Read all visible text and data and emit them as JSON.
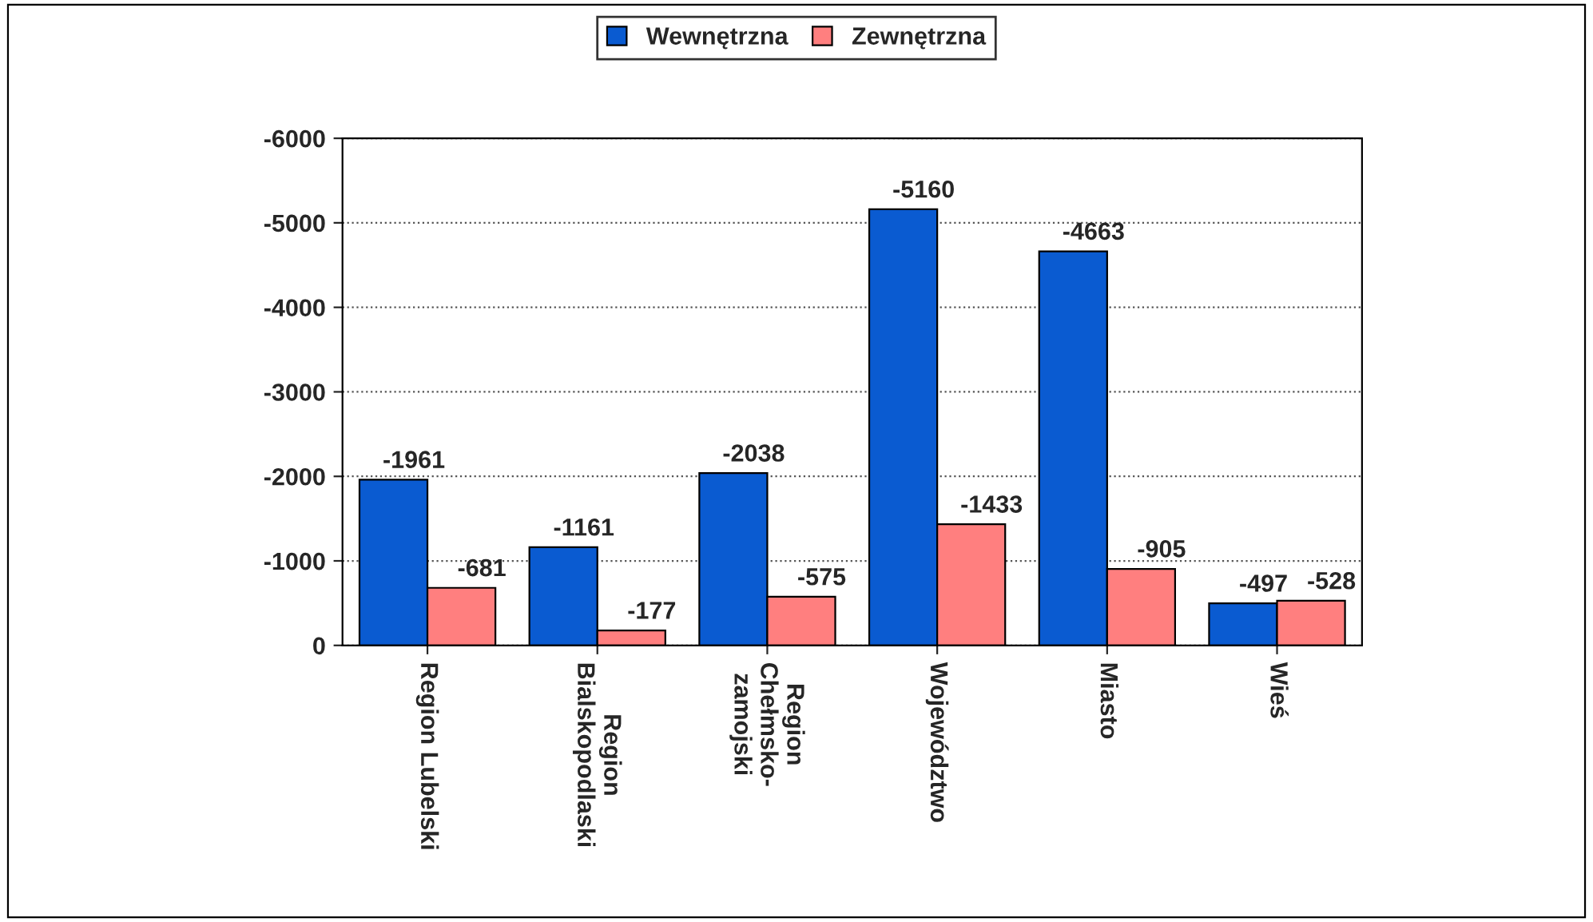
{
  "chart_data": {
    "type": "bar",
    "categories": [
      "Region Lubelski",
      "Region\nBialskopodlaski",
      "Region\nChełmsko-\nzamojski",
      "Województwo",
      "Miasto",
      "Wieś"
    ],
    "series": [
      {
        "name": "Wewnętrzna",
        "color": "#0a5bd1",
        "values": [
          -1961,
          -1161,
          -2038,
          -5160,
          -4663,
          -497
        ]
      },
      {
        "name": "Zewnętrzna",
        "color": "#ff7f7f",
        "values": [
          -681,
          -177,
          -575,
          -1433,
          -905,
          -528
        ]
      }
    ],
    "ylim": [
      0,
      -6000
    ],
    "yticks": [
      0,
      -1000,
      -2000,
      -3000,
      -4000,
      -5000,
      -6000
    ],
    "grid": "y",
    "legend": "top",
    "data_labels": true
  }
}
